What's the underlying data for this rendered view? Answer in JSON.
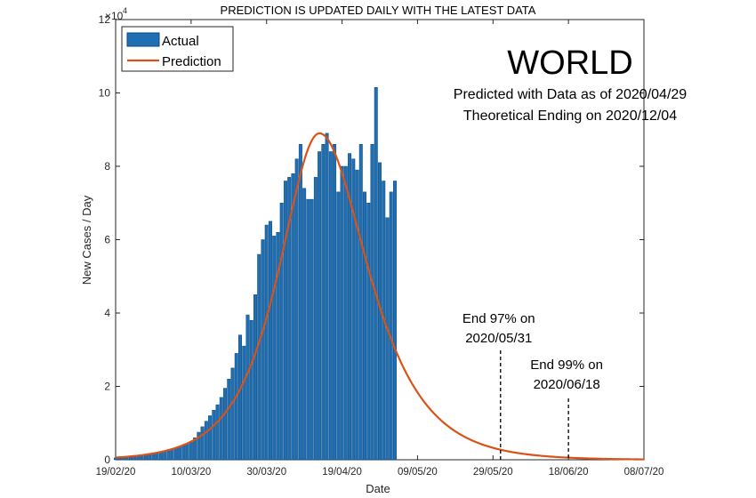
{
  "chart_data": {
    "type": "bar",
    "title": "PREDICTION IS UPDATED DAILY WITH THE LATEST DATA",
    "region_label": "WORLD",
    "subtitle_lines": [
      "Predicted with Data as of 2020/04/29",
      "Theoretical Ending on 2020/12/04"
    ],
    "xlabel": "Date",
    "ylabel": "New Cases / Day",
    "y_exponent_label": "×10",
    "y_exponent_power": "4",
    "ylim": [
      0,
      12
    ],
    "y_ticks": [
      "0",
      "2",
      "4",
      "6",
      "8",
      "10",
      "12"
    ],
    "x_day_range": [
      0,
      140
    ],
    "x_ticks": [
      {
        "day": 0,
        "label": "19/02/20"
      },
      {
        "day": 20,
        "label": "10/03/20"
      },
      {
        "day": 40,
        "label": "30/03/20"
      },
      {
        "day": 60,
        "label": "19/04/20"
      },
      {
        "day": 80,
        "label": "09/05/20"
      },
      {
        "day": 100,
        "label": "29/05/20"
      },
      {
        "day": 120,
        "label": "18/06/20"
      },
      {
        "day": 140,
        "label": "08/07/20"
      }
    ],
    "legend": {
      "actual": "Actual",
      "prediction": "Prediction",
      "position": "top-left"
    },
    "series": [
      {
        "name": "Actual",
        "start_day": 0,
        "values": [
          0.05,
          0.05,
          0.06,
          0.07,
          0.08,
          0.09,
          0.1,
          0.12,
          0.14,
          0.16,
          0.18,
          0.2,
          0.22,
          0.24,
          0.27,
          0.3,
          0.33,
          0.36,
          0.4,
          0.44,
          0.48,
          0.6,
          0.75,
          0.9,
          1.05,
          1.2,
          1.35,
          1.5,
          1.7,
          1.95,
          2.2,
          2.5,
          2.9,
          3.4,
          3.1,
          3.95,
          3.8,
          4.5,
          5.6,
          6.0,
          6.4,
          6.5,
          6.1,
          6.2,
          7.0,
          7.6,
          7.7,
          7.8,
          8.2,
          8.6,
          7.4,
          7.1,
          7.1,
          7.7,
          8.4,
          8.6,
          8.9,
          8.4,
          8.6,
          7.3,
          8.0,
          8.0,
          8.35,
          8.2,
          7.9,
          8.6,
          7.3,
          7.0,
          8.6,
          10.15,
          8.1,
          7.6,
          6.6,
          7.3,
          7.6
        ]
      },
      {
        "name": "Prediction",
        "model": "peaked curve",
        "peak_day": 54,
        "peak_value": 8.9
      }
    ],
    "annotations": [
      {
        "label_line1": "End 97% on",
        "label_line2": "2020/05/31",
        "day": 102
      },
      {
        "label_line1": "End 99% on",
        "label_line2": "2020/06/18",
        "day": 120
      }
    ],
    "colors": {
      "bar": "#1f6fb2",
      "bar_edge": "#0e4a80",
      "line": "#d95319"
    }
  }
}
